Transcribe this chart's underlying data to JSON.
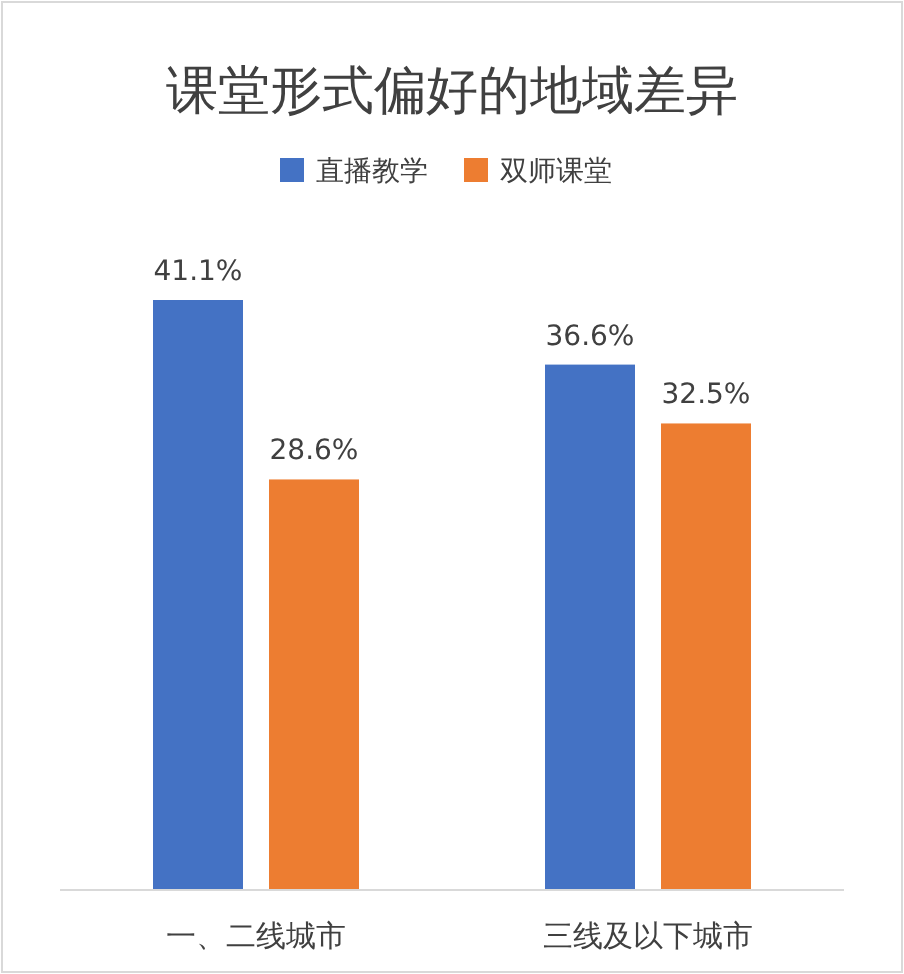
{
  "chart_data": {
    "type": "bar",
    "title": "课堂形式偏好的地域差异",
    "categories": [
      "一、二线城市",
      "三线及以下城市"
    ],
    "legend": "top",
    "series": [
      {
        "name": "直播教学",
        "color": "#4472c4",
        "values": [
          41.1,
          36.6
        ],
        "value_labels": [
          "41.1%",
          "36.6%"
        ]
      },
      {
        "name": "双师课堂",
        "color": "#ed7d31",
        "values": [
          28.6,
          32.5
        ],
        "value_labels": [
          "28.6%",
          "32.5%"
        ]
      }
    ]
  }
}
